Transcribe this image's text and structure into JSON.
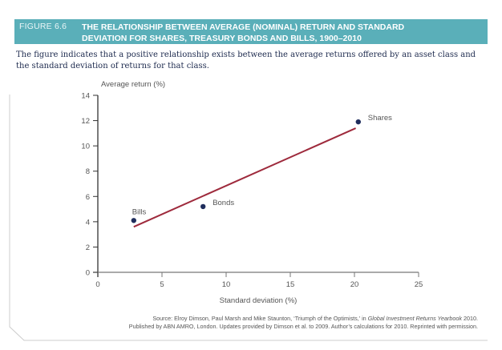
{
  "figure": {
    "number": "FIGURE 6.6",
    "title_line1": "THE RELATIONSHIP BETWEEN AVERAGE (NOMINAL) RETURN AND STANDARD",
    "title_line2": "DEVIATION FOR SHARES, TREASURY BONDS AND BILLS, 1900–2010",
    "caption": "The figure indicates that a positive relationship exists between the average returns offered by an asset class and the standard deviation of returns for that class.",
    "source_line1_pre": "Source: Elroy Dimson, Paul Marsh and Mike Staunton, ‘Triumph of the Optimists,’ in ",
    "source_line1_italic": "Global Investment Returns Yearbook",
    "source_line1_post": " 2010.",
    "source_line2": "Published by ABN AMRO, London. Updates provided by Dimson et al. to 2009. Author’s calculations for 2010. Reprinted with permission."
  },
  "colors": {
    "banner": "#5aafb9",
    "trend_line": "#9e2a3c",
    "points": "#1f2d5c",
    "axis": "#333333",
    "x_axis": "#777777"
  },
  "chart_data": {
    "type": "scatter",
    "title": "The relationship between average (nominal) return and standard deviation for shares, treasury bonds and bills, 1900–2010",
    "xlabel": "Standard deviation (%)",
    "ylabel": "Average return (%)",
    "xlim": [
      0,
      25
    ],
    "ylim": [
      0,
      14
    ],
    "x_ticks": [
      0,
      5,
      10,
      15,
      20,
      25
    ],
    "y_ticks": [
      0,
      2,
      4,
      6,
      8,
      10,
      12,
      14
    ],
    "grid": false,
    "points": [
      {
        "name": "Bills",
        "x": 2.8,
        "y": 4.1
      },
      {
        "name": "Bonds",
        "x": 8.2,
        "y": 5.2
      },
      {
        "name": "Shares",
        "x": 20.3,
        "y": 11.9
      }
    ],
    "trend_line": {
      "x": [
        2.8,
        20.1
      ],
      "y": [
        3.6,
        11.4
      ]
    }
  }
}
